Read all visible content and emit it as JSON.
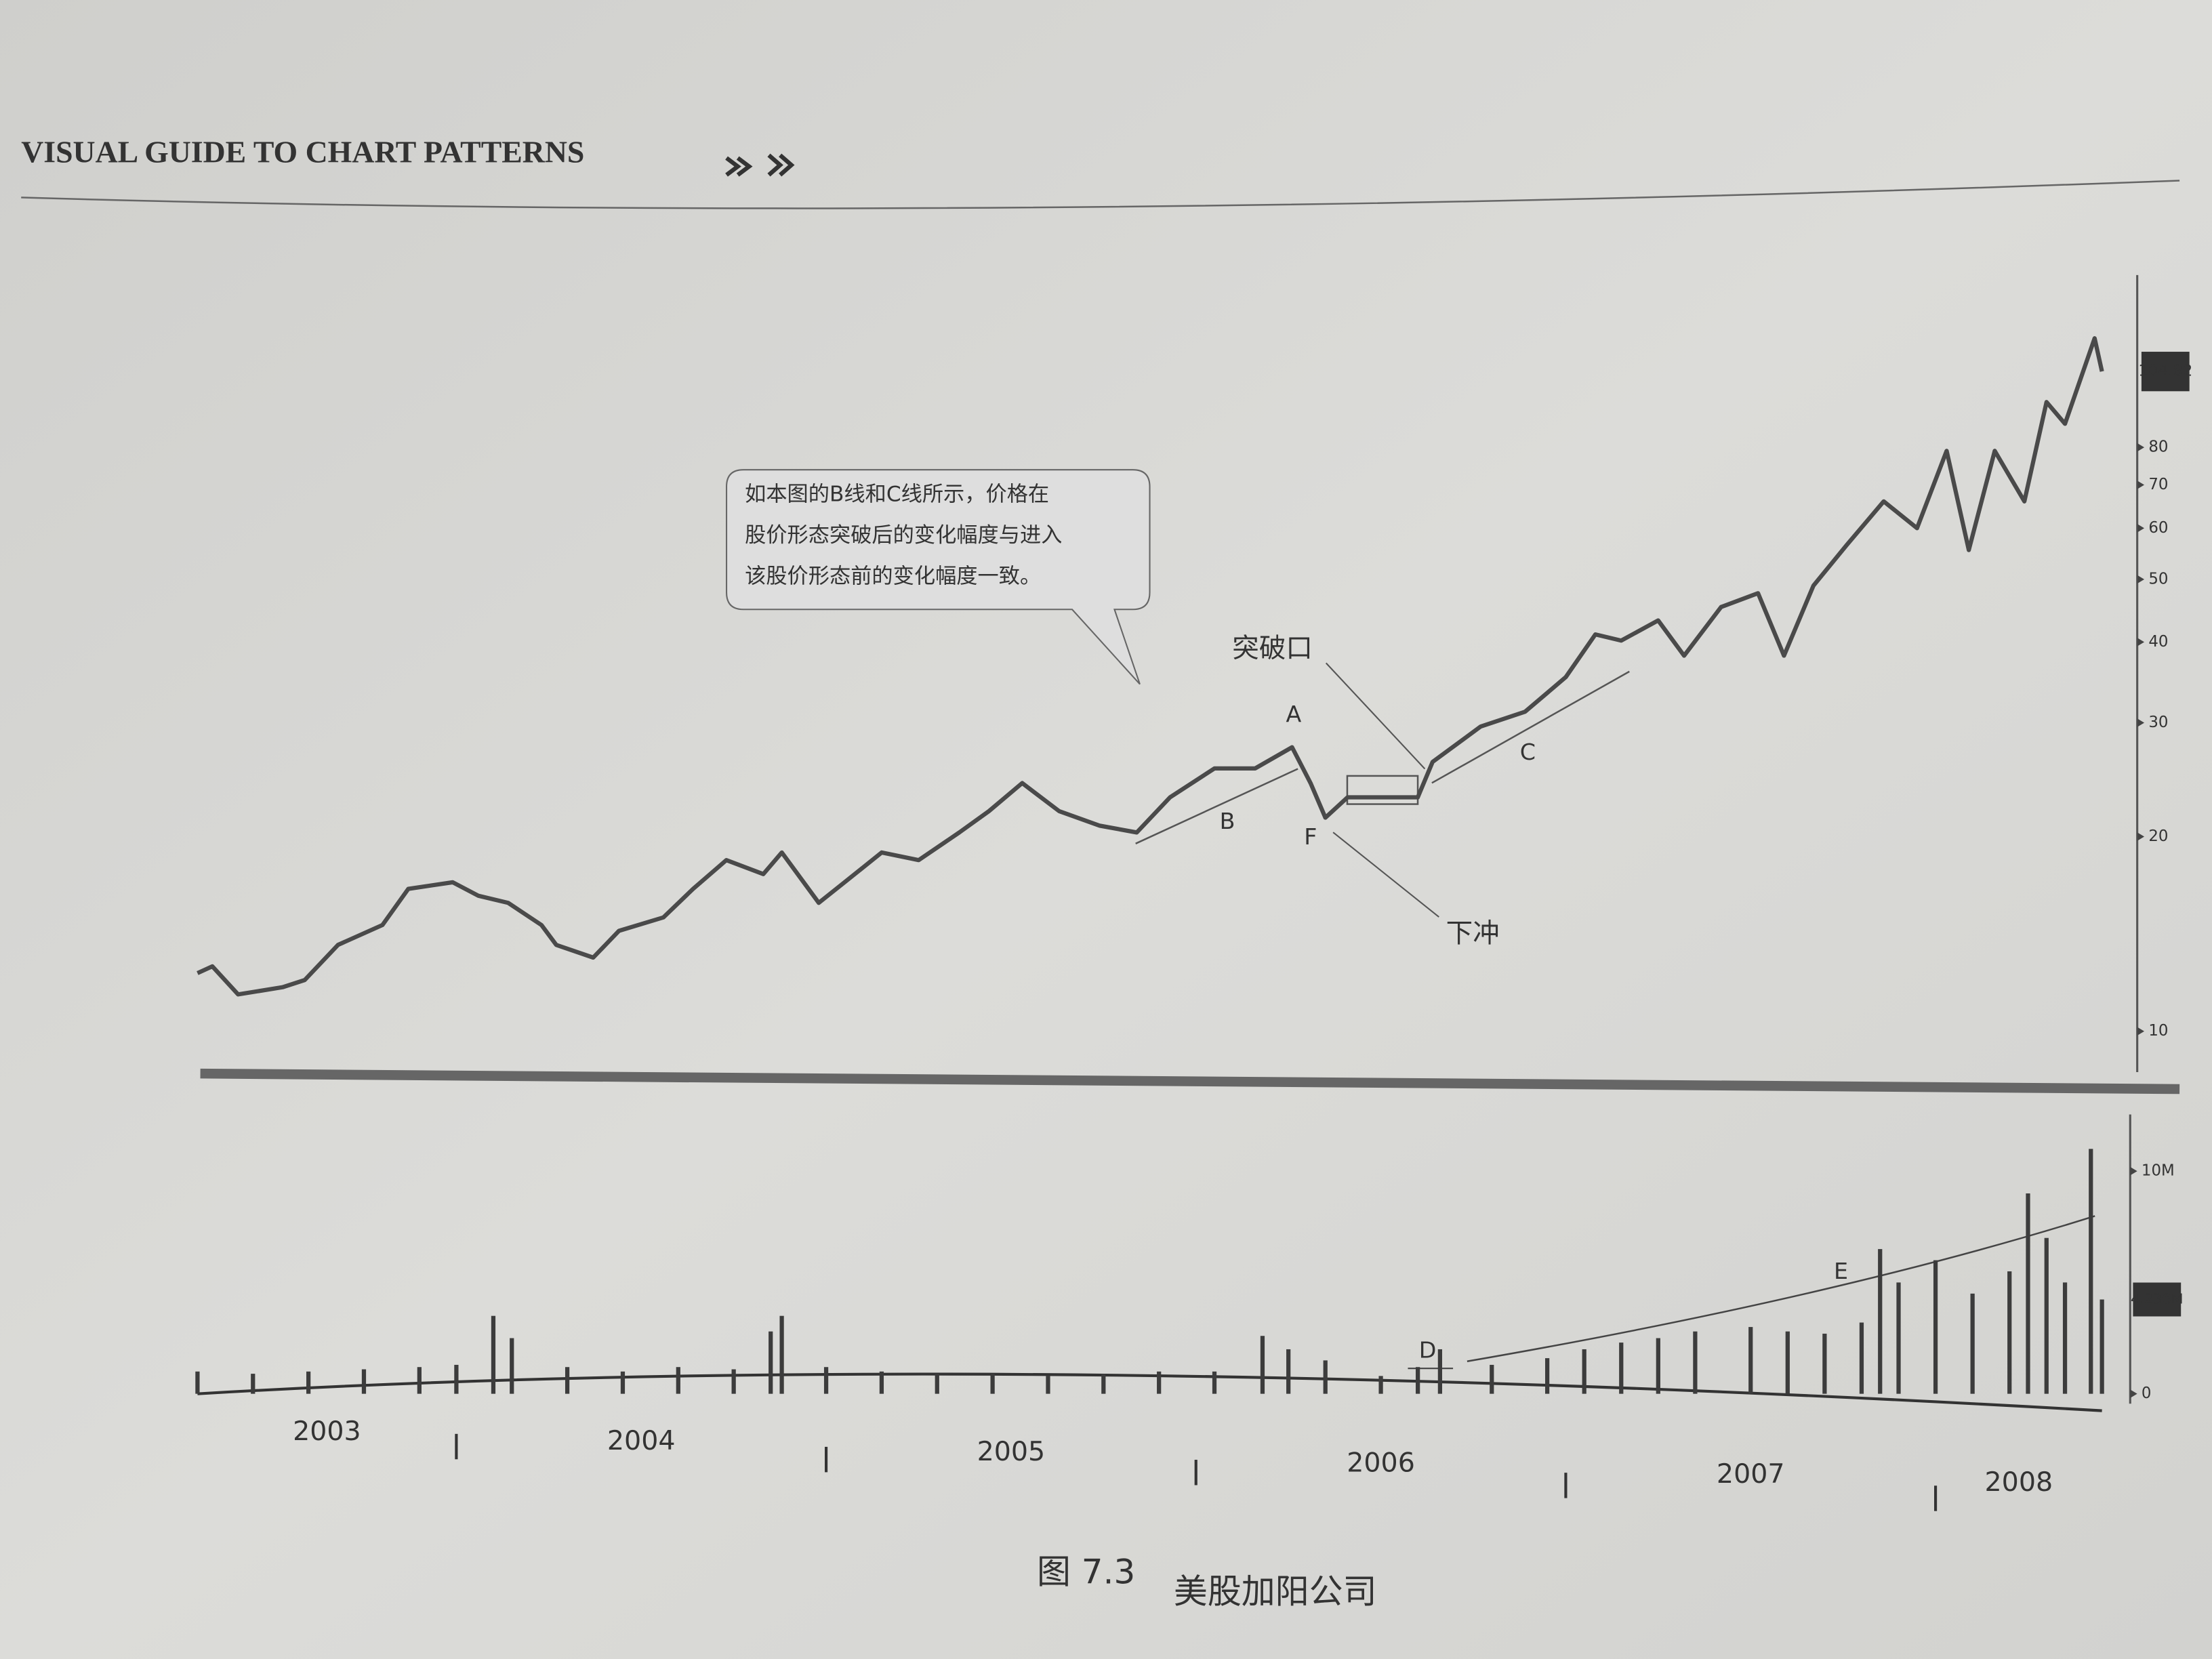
{
  "header": {
    "title": "VISUAL GUIDE TO CHART PATTERNS"
  },
  "caption": {
    "label": "图 7.3",
    "title": "美股加阳公司"
  },
  "chart_data": [
    {
      "type": "line",
      "log_y": true,
      "xlim": [
        2003.3,
        2008.45
      ],
      "ylim": [
        9,
        150
      ],
      "yticks": [
        10,
        20,
        30,
        40,
        50,
        60,
        70,
        80
      ],
      "x": [
        2003.3,
        2003.34,
        2003.41,
        2003.53,
        2003.59,
        2003.68,
        2003.8,
        2003.87,
        2003.99,
        2004.06,
        2004.14,
        2004.23,
        2004.27,
        2004.37,
        2004.44,
        2004.56,
        2004.64,
        2004.73,
        2004.83,
        2004.88,
        2004.98,
        2005.05,
        2005.15,
        2005.25,
        2005.36,
        2005.44,
        2005.53,
        2005.63,
        2005.74,
        2005.84,
        2005.93,
        2006.05,
        2006.16,
        2006.26,
        2006.31,
        2006.35,
        2006.41,
        2006.5,
        2006.6,
        2006.64,
        2006.77,
        2006.89,
        2007.0,
        2007.08,
        2007.15,
        2007.25,
        2007.32,
        2007.42,
        2007.52,
        2007.59,
        2007.67,
        2007.76,
        2007.86,
        2007.95,
        2008.03,
        2008.09,
        2008.16,
        2008.24,
        2008.3,
        2008.35,
        2008.43,
        2008.45
      ],
      "series": [
        {
          "color": "#4a4a4a",
          "values": [
            12.3,
            12.6,
            11.4,
            11.7,
            12.0,
            13.6,
            14.6,
            16.6,
            17.0,
            16.2,
            15.8,
            14.6,
            13.6,
            13.0,
            14.3,
            15.0,
            16.6,
            18.4,
            17.5,
            18.9,
            15.8,
            17.0,
            18.9,
            18.4,
            20.3,
            21.9,
            24.2,
            21.9,
            20.8,
            20.3,
            23.0,
            25.5,
            25.5,
            27.5,
            24.2,
            21.4,
            23.0,
            23.0,
            23.0,
            26.1,
            29.6,
            31.2,
            35.3,
            41.1,
            40.2,
            43.2,
            38.1,
            45.3,
            47.6,
            38.1,
            48.9,
            56.5,
            66,
            60,
            79,
            55.5,
            79,
            66,
            94,
            87,
            118,
            104.82
          ]
        }
      ],
      "annotations": {
        "callout": [
          "如本图的B线和C线所示，价格在",
          "股价形态突破后的变化幅度与进入",
          "该股价形态前的变化幅度一致。"
        ],
        "labels": [
          "A",
          "B",
          "C",
          "F",
          "突破口",
          "下冲"
        ]
      }
    },
    {
      "type": "bar",
      "color": "#3c3c3c",
      "xlim": [
        2003.3,
        2008.45
      ],
      "ylim": [
        0,
        12.8
      ],
      "yticks": [
        0,
        {
          "value": 10,
          "label": "10M"
        }
      ],
      "xticks": [
        2003,
        2004,
        2005,
        2006,
        2007,
        2008
      ],
      "x": [
        2003.3,
        2003.45,
        2003.6,
        2003.75,
        2003.9,
        2004.0,
        2004.1,
        2004.15,
        2004.3,
        2004.45,
        2004.6,
        2004.75,
        2004.85,
        2004.88,
        2005.0,
        2005.15,
        2005.3,
        2005.45,
        2005.6,
        2005.75,
        2005.9,
        2006.05,
        2006.18,
        2006.25,
        2006.35,
        2006.5,
        2006.6,
        2006.66,
        2006.8,
        2006.95,
        2007.05,
        2007.15,
        2007.25,
        2007.35,
        2007.5,
        2007.6,
        2007.7,
        2007.8,
        2007.85,
        2007.9,
        2008.0,
        2008.1,
        2008.2,
        2008.25,
        2008.3,
        2008.35,
        2008.42,
        2008.45
      ],
      "values": [
        1.0,
        0.9,
        1.0,
        1.1,
        1.2,
        1.3,
        3.5,
        2.5,
        1.2,
        1.0,
        1.2,
        1.1,
        2.8,
        3.5,
        1.2,
        1.0,
        0.9,
        0.9,
        0.8,
        0.9,
        1.0,
        1.0,
        2.6,
        2.0,
        1.5,
        0.8,
        1.2,
        2.0,
        1.3,
        1.6,
        2.0,
        2.3,
        2.5,
        2.8,
        3.0,
        2.8,
        2.7,
        3.2,
        6.5,
        5.0,
        6.0,
        4.5,
        5.5,
        9.0,
        7.0,
        5.0,
        11.0,
        4.236
      ],
      "value_labels": [
        null,
        null,
        null,
        null,
        null,
        null,
        null,
        null,
        null,
        null,
        null,
        null,
        null,
        null,
        null,
        null,
        null,
        null,
        null,
        null,
        null,
        null,
        null,
        null,
        null,
        null,
        null,
        null,
        null,
        null,
        null,
        null,
        null,
        null,
        null,
        null,
        null,
        null,
        null,
        null,
        null,
        null,
        null,
        null,
        null,
        null,
        null,
        "4.236M"
      ],
      "annotations": [
        "D",
        "E"
      ]
    }
  ]
}
